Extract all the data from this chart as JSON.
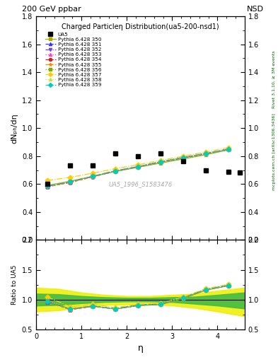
{
  "title_top": "200 GeV ppbar",
  "title_right": "NSD",
  "main_title": "Charged Particleη Distribution",
  "subtitle": "(ua5-200-nsd1)",
  "watermark": "UA5_1996_S1583476",
  "right_label": "Rivet 3.1.10, ≥ 3M events",
  "right_label2": "mcplots.cern.ch [arXiv:1306.3436]",
  "xlabel": "η",
  "ylabel_main": "dNₚₕ/dη",
  "ylabel_ratio": "Ratio to UA5",
  "ylim_main": [
    0.2,
    1.8
  ],
  "ylim_ratio": [
    0.5,
    2.0
  ],
  "xlim": [
    0.0,
    4.6
  ],
  "ua5_x": [
    0.25,
    0.75,
    1.25,
    1.75,
    2.25,
    2.75,
    3.25,
    3.75,
    4.25,
    4.5
  ],
  "ua5_y": [
    0.6,
    0.735,
    0.735,
    0.82,
    0.8,
    0.82,
    0.765,
    0.7,
    0.685,
    0.68
  ],
  "pythia_x": [
    0.25,
    0.75,
    1.25,
    1.75,
    2.25,
    2.75,
    3.25,
    3.75,
    4.25
  ],
  "p350_y": [
    0.59,
    0.62,
    0.655,
    0.69,
    0.72,
    0.75,
    0.78,
    0.81,
    0.845
  ],
  "p350_color": "#aaaa00",
  "p350_marker": "s",
  "p350_ls": "-",
  "p350_label": "Pythia 6.428 350",
  "p351_y": [
    0.58,
    0.615,
    0.655,
    0.695,
    0.725,
    0.76,
    0.79,
    0.82,
    0.85
  ],
  "p351_color": "#3333ff",
  "p351_marker": "^",
  "p351_ls": "--",
  "p351_label": "Pythia 6.428 351",
  "p352_y": [
    0.585,
    0.615,
    0.655,
    0.695,
    0.725,
    0.76,
    0.79,
    0.82,
    0.85
  ],
  "p352_color": "#7744cc",
  "p352_marker": "v",
  "p352_ls": "-.",
  "p352_label": "Pythia 6.428 352",
  "p353_y": [
    0.583,
    0.613,
    0.653,
    0.693,
    0.723,
    0.758,
    0.788,
    0.818,
    0.848
  ],
  "p353_color": "#ff44bb",
  "p353_marker": "^",
  "p353_ls": ":",
  "p353_label": "Pythia 6.428 353",
  "p354_y": [
    0.582,
    0.612,
    0.652,
    0.692,
    0.722,
    0.757,
    0.787,
    0.817,
    0.847
  ],
  "p354_color": "#cc2222",
  "p354_marker": "o",
  "p354_ls": "--",
  "p354_label": "Pythia 6.428 354",
  "p355_y": [
    0.581,
    0.611,
    0.651,
    0.691,
    0.721,
    0.756,
    0.786,
    0.816,
    0.846
  ],
  "p355_color": "#ff8800",
  "p355_marker": "*",
  "p355_ls": "--",
  "p355_label": "Pythia 6.428 355",
  "p356_y": [
    0.59,
    0.62,
    0.655,
    0.692,
    0.722,
    0.757,
    0.787,
    0.817,
    0.847
  ],
  "p356_color": "#88aa00",
  "p356_marker": "s",
  "p356_ls": ":",
  "p356_label": "Pythia 6.428 356",
  "p357_y": [
    0.625,
    0.648,
    0.678,
    0.71,
    0.738,
    0.77,
    0.8,
    0.83,
    0.86
  ],
  "p357_color": "#ffcc00",
  "p357_marker": "D",
  "p357_ls": "-.",
  "p357_label": "Pythia 6.428 357",
  "p358_y": [
    0.59,
    0.622,
    0.657,
    0.695,
    0.725,
    0.76,
    0.79,
    0.82,
    0.85
  ],
  "p358_color": "#ccdd44",
  "p358_marker": "^",
  "p358_ls": ":",
  "p358_label": "Pythia 6.428 358",
  "p359_y": [
    0.585,
    0.618,
    0.655,
    0.693,
    0.723,
    0.758,
    0.788,
    0.818,
    0.848
  ],
  "p359_color": "#00ccbb",
  "p359_marker": "D",
  "p359_ls": "--",
  "p359_label": "Pythia 6.428 359",
  "band_yellow_x": [
    0.0,
    0.5,
    1.0,
    1.5,
    2.0,
    2.5,
    3.0,
    3.5,
    4.0,
    4.6
  ],
  "band_yellow_y_top": [
    1.2,
    1.18,
    1.12,
    1.08,
    1.06,
    1.06,
    1.08,
    1.1,
    1.15,
    1.2
  ],
  "band_yellow_y_bot": [
    0.8,
    0.82,
    0.88,
    0.91,
    0.92,
    0.92,
    0.9,
    0.86,
    0.8,
    0.72
  ],
  "band_green_x": [
    0.0,
    0.5,
    1.0,
    1.5,
    2.0,
    2.5,
    3.0,
    3.5,
    4.0,
    4.6
  ],
  "band_green_y_top": [
    1.1,
    1.09,
    1.06,
    1.04,
    1.03,
    1.03,
    1.04,
    1.05,
    1.08,
    1.12
  ],
  "band_green_y_bot": [
    0.9,
    0.91,
    0.94,
    0.96,
    0.97,
    0.97,
    0.96,
    0.93,
    0.9,
    0.85
  ]
}
